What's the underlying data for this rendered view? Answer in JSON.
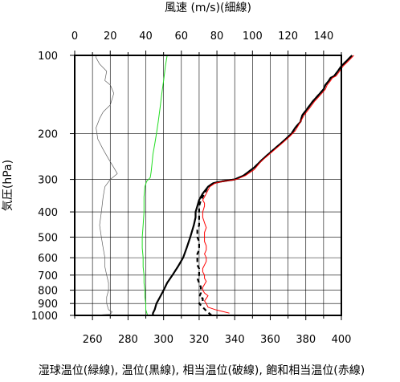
{
  "chart_data": {
    "type": "line",
    "title_top": "風速 (m/s)(細線)",
    "ylabel": "気圧(hPa)",
    "xlabel_bottom": "湿球温位(緑線), 温位(黒線), 相当温位(破線), 飽和相当温位(赤線)",
    "y_scale": "log",
    "y_reversed": true,
    "ylim": [
      1000,
      100
    ],
    "y_ticks": [
      100,
      200,
      300,
      400,
      500,
      600,
      700,
      800,
      900,
      1000
    ],
    "x_bottom_lim": [
      250,
      400
    ],
    "x_bottom_ticks": [
      260,
      280,
      300,
      320,
      340,
      360,
      380,
      400
    ],
    "x_top_lim": [
      0,
      150
    ],
    "x_top_ticks": [
      0,
      20,
      40,
      60,
      80,
      100,
      120,
      140
    ],
    "grid": true,
    "series": [
      {
        "key": "wind_speed",
        "axis": "top",
        "style": "solid-thin",
        "color": "#606060",
        "points": [
          [
            10,
            1000
          ],
          [
            20,
            990
          ],
          [
            21,
            970
          ],
          [
            19,
            950
          ],
          [
            18,
            900
          ],
          [
            18,
            850
          ],
          [
            19,
            800
          ],
          [
            19,
            750
          ],
          [
            18,
            700
          ],
          [
            17,
            650
          ],
          [
            17,
            600
          ],
          [
            16,
            550
          ],
          [
            15,
            500
          ],
          [
            14,
            450
          ],
          [
            15,
            400
          ],
          [
            16,
            350
          ],
          [
            17,
            320
          ],
          [
            20,
            300
          ],
          [
            24,
            285
          ],
          [
            22,
            270
          ],
          [
            19,
            250
          ],
          [
            16,
            230
          ],
          [
            13,
            210
          ],
          [
            12,
            190
          ],
          [
            14,
            175
          ],
          [
            16,
            165
          ],
          [
            20,
            155
          ],
          [
            22,
            140
          ],
          [
            20,
            130
          ],
          [
            17,
            125
          ],
          [
            18,
            115
          ],
          [
            14,
            108
          ],
          [
            12,
            102
          ],
          [
            12,
            100
          ]
        ]
      },
      {
        "key": "wet_bulb_potential_temperature",
        "axis": "bottom",
        "style": "solid",
        "color": "#22dd22",
        "points": [
          [
            291,
            1000
          ],
          [
            290,
            950
          ],
          [
            290,
            900
          ],
          [
            289.5,
            850
          ],
          [
            289.5,
            800
          ],
          [
            289,
            750
          ],
          [
            289,
            700
          ],
          [
            288.5,
            650
          ],
          [
            288.5,
            600
          ],
          [
            288,
            550
          ],
          [
            288,
            500
          ],
          [
            288.5,
            450
          ],
          [
            289,
            400
          ],
          [
            289,
            350
          ],
          [
            289.5,
            320
          ],
          [
            290.5,
            305
          ],
          [
            292.5,
            295
          ],
          [
            293,
            280
          ],
          [
            293.5,
            260
          ],
          [
            294,
            240
          ],
          [
            295,
            220
          ],
          [
            296,
            200
          ],
          [
            297,
            180
          ],
          [
            298,
            160
          ],
          [
            299,
            140
          ],
          [
            300,
            125
          ],
          [
            301,
            110
          ],
          [
            302,
            100
          ]
        ]
      },
      {
        "key": "potential_temperature",
        "axis": "bottom",
        "style": "solid-thick",
        "color": "#000000",
        "points": [
          [
            294,
            1000
          ],
          [
            294,
            980
          ],
          [
            295,
            950
          ],
          [
            296,
            900
          ],
          [
            298,
            850
          ],
          [
            300,
            800
          ],
          [
            302,
            750
          ],
          [
            305,
            700
          ],
          [
            308,
            650
          ],
          [
            311,
            600
          ],
          [
            313,
            550
          ],
          [
            315,
            500
          ],
          [
            317,
            450
          ],
          [
            318,
            420
          ],
          [
            318,
            400
          ],
          [
            319,
            380
          ],
          [
            320,
            360
          ],
          [
            322,
            340
          ],
          [
            325,
            320
          ],
          [
            328,
            310
          ],
          [
            333,
            305
          ],
          [
            340,
            300
          ],
          [
            345,
            290
          ],
          [
            351,
            270
          ],
          [
            356,
            250
          ],
          [
            362,
            230
          ],
          [
            367,
            215
          ],
          [
            372,
            200
          ],
          [
            374,
            190
          ],
          [
            377,
            180
          ],
          [
            378,
            170
          ],
          [
            381,
            160
          ],
          [
            384,
            150
          ],
          [
            386,
            145
          ],
          [
            388,
            140
          ],
          [
            390,
            135
          ],
          [
            391,
            130
          ],
          [
            393,
            125
          ],
          [
            394,
            122
          ],
          [
            396,
            120
          ],
          [
            398,
            115
          ],
          [
            400,
            110
          ],
          [
            403,
            105
          ],
          [
            406,
            100
          ]
        ]
      },
      {
        "key": "equivalent_potential_temperature",
        "axis": "bottom",
        "style": "dashed-thick",
        "color": "#000000",
        "points": [
          [
            327,
            1000
          ],
          [
            324,
            960
          ],
          [
            322,
            930
          ],
          [
            320,
            900
          ],
          [
            322,
            880
          ],
          [
            322,
            860
          ],
          [
            320,
            850
          ],
          [
            321,
            820
          ],
          [
            321,
            780
          ],
          [
            320,
            750
          ],
          [
            319,
            720
          ],
          [
            320,
            700
          ],
          [
            320,
            680
          ],
          [
            320,
            660
          ],
          [
            319,
            640
          ],
          [
            319,
            620
          ],
          [
            319,
            600
          ],
          [
            319,
            580
          ],
          [
            320,
            560
          ],
          [
            320,
            540
          ],
          [
            320,
            520
          ],
          [
            319,
            500
          ],
          [
            319,
            470
          ],
          [
            320,
            450
          ],
          [
            320,
            430
          ],
          [
            320,
            410
          ],
          [
            320,
            400
          ],
          [
            320,
            380
          ],
          [
            321,
            360
          ],
          [
            323,
            340
          ],
          [
            325,
            320
          ],
          [
            328,
            310
          ],
          [
            333,
            305
          ],
          [
            340,
            300
          ],
          [
            345,
            290
          ],
          [
            351,
            270
          ],
          [
            356,
            250
          ],
          [
            362,
            230
          ],
          [
            367,
            215
          ],
          [
            372,
            200
          ],
          [
            374,
            190
          ],
          [
            377,
            180
          ],
          [
            378,
            170
          ],
          [
            381,
            160
          ],
          [
            384,
            150
          ],
          [
            386,
            145
          ],
          [
            388,
            140
          ],
          [
            390,
            135
          ],
          [
            391,
            130
          ],
          [
            393,
            125
          ],
          [
            394,
            122
          ],
          [
            396,
            120
          ],
          [
            398,
            115
          ],
          [
            400,
            110
          ],
          [
            403,
            105
          ],
          [
            406,
            100
          ]
        ]
      },
      {
        "key": "saturated_equivalent_potential_temperature",
        "axis": "bottom",
        "style": "solid",
        "color": "#ff0000",
        "points": [
          [
            337,
            980
          ],
          [
            333,
            965
          ],
          [
            329,
            950
          ],
          [
            325,
            930
          ],
          [
            324,
            900
          ],
          [
            323,
            880
          ],
          [
            324,
            860
          ],
          [
            325,
            840
          ],
          [
            323,
            820
          ],
          [
            322,
            800
          ],
          [
            322,
            780
          ],
          [
            323,
            760
          ],
          [
            324,
            740
          ],
          [
            323,
            720
          ],
          [
            323,
            700
          ],
          [
            322,
            680
          ],
          [
            322,
            660
          ],
          [
            323,
            640
          ],
          [
            324,
            620
          ],
          [
            324,
            600
          ],
          [
            323,
            580
          ],
          [
            324,
            560
          ],
          [
            324,
            540
          ],
          [
            323,
            520
          ],
          [
            323,
            500
          ],
          [
            323,
            480
          ],
          [
            324,
            460
          ],
          [
            323,
            440
          ],
          [
            322,
            420
          ],
          [
            322,
            400
          ],
          [
            323,
            380
          ],
          [
            323,
            370
          ],
          [
            322,
            360
          ],
          [
            324,
            340
          ],
          [
            326,
            320
          ],
          [
            329,
            310
          ],
          [
            334,
            305
          ],
          [
            341,
            300
          ],
          [
            346,
            290
          ],
          [
            351,
            275
          ],
          [
            355,
            255
          ],
          [
            361,
            235
          ],
          [
            366,
            220
          ],
          [
            371,
            205
          ],
          [
            374,
            195
          ],
          [
            376,
            185
          ],
          [
            378,
            175
          ],
          [
            379,
            170
          ],
          [
            382,
            160
          ],
          [
            385,
            150
          ],
          [
            387,
            145
          ],
          [
            389,
            140
          ],
          [
            391,
            135
          ],
          [
            392,
            130
          ],
          [
            394,
            125
          ],
          [
            395,
            122
          ],
          [
            397,
            120
          ],
          [
            399,
            115
          ],
          [
            401,
            110
          ],
          [
            404,
            105
          ],
          [
            407,
            100
          ]
        ]
      }
    ]
  }
}
